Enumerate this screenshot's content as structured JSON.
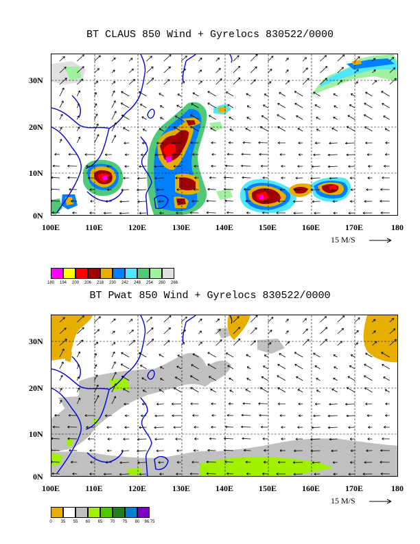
{
  "panel1": {
    "title": "BT CLAUS 850 Wind + Gyrelocs 830522/0000",
    "reference_vector": "15 M/S",
    "colorbar": {
      "labels": [
        "180",
        "194",
        "200",
        "206",
        "218",
        "230",
        "242",
        "248",
        "254",
        "260",
        "266"
      ],
      "colors": [
        "#ff00ff",
        "#ffff00",
        "#ff0000",
        "#a00000",
        "#e6af00",
        "#0080ff",
        "#50e6ff",
        "#50c878",
        "#a0f0a0",
        "#e0e0e0"
      ]
    }
  },
  "panel2": {
    "title": "BT Pwat 850 Wind + Gyrelocs 830522/0000",
    "reference_vector": "15 M/S",
    "colorbar": {
      "labels": [
        "0",
        "35",
        "55",
        "60",
        "65",
        "70",
        "75",
        "80",
        "86.75"
      ],
      "colors": [
        "#e6af00",
        "#ffffff",
        "#c0c0c0",
        "#a0f000",
        "#50c800",
        "#208020",
        "#0080d0",
        "#8000c8"
      ]
    }
  },
  "lat_labels": [
    "30N",
    "20N",
    "10N",
    "0N"
  ],
  "lon_labels": [
    "100E",
    "110E",
    "120E",
    "130E",
    "140E",
    "150E",
    "160E",
    "170E",
    "180"
  ]
}
